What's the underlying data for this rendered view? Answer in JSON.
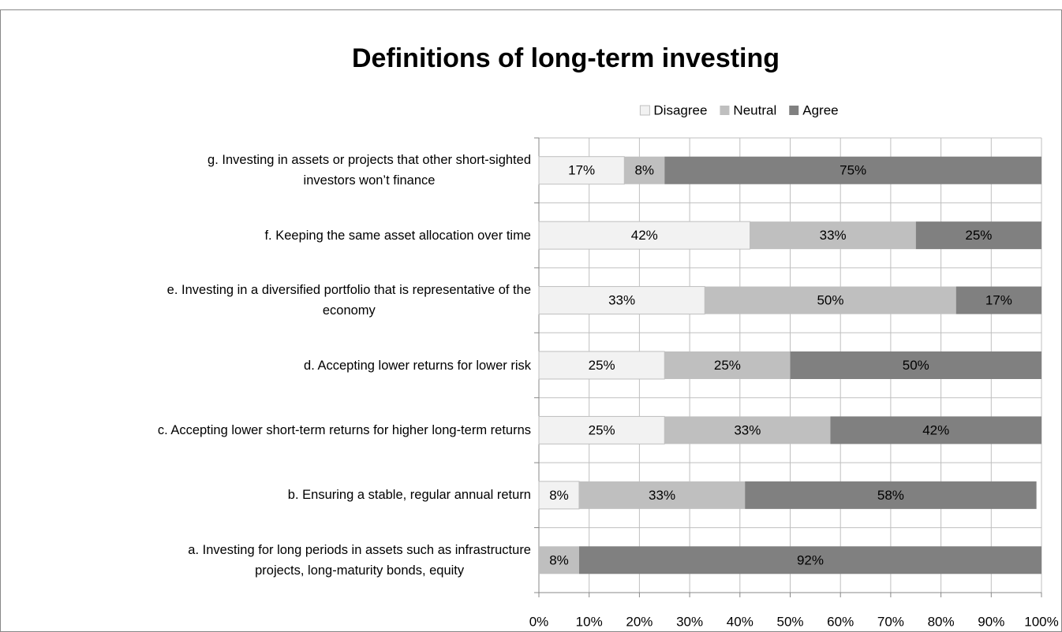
{
  "chart_data": {
    "type": "stacked_barh",
    "title": "Definitions of long-term investing",
    "categories": [
      "a. Investing for long periods in assets such as infrastructure\nprojects, long-maturity bonds, equity",
      "b. Ensuring a stable, regular annual return",
      "c. Accepting lower short-term returns for higher long-term returns",
      "d. Accepting lower returns for lower risk",
      "e. Investing in a diversified portfolio that is representative of the\neconomy",
      "f.  Keeping the same asset allocation over time",
      "g. Investing in assets or projects that other short-sighted\ninvestors won’t finance"
    ],
    "series": [
      {
        "name": "Disagree",
        "color": "#f2f2f2",
        "values": [
          0,
          8,
          25,
          25,
          33,
          42,
          17
        ],
        "value_labels": [
          null,
          "8%",
          "25%",
          "25%",
          "33%",
          "42%",
          "17%"
        ]
      },
      {
        "name": "Neutral",
        "color": "#bfbfbf",
        "values": [
          8,
          33,
          33,
          25,
          50,
          33,
          8
        ],
        "value_labels": [
          "8%",
          "33%",
          "33%",
          "25%",
          "50%",
          "33%",
          "8%"
        ]
      },
      {
        "name": "Agree",
        "color": "#808080",
        "values": [
          92,
          58,
          42,
          50,
          17,
          25,
          75
        ],
        "value_labels": [
          "92%",
          "58%",
          "42%",
          "50%",
          "17%",
          "25%",
          "75%"
        ]
      }
    ],
    "xlim": [
      0,
      100
    ],
    "xticks": [
      {
        "value": 0,
        "label": "0%"
      },
      {
        "value": 10,
        "label": "10%"
      },
      {
        "value": 20,
        "label": "20%"
      },
      {
        "value": 30,
        "label": "30%"
      },
      {
        "value": 40,
        "label": "40%"
      },
      {
        "value": 50,
        "label": "50%"
      },
      {
        "value": 60,
        "label": "60%"
      },
      {
        "value": 70,
        "label": "70%"
      },
      {
        "value": 80,
        "label": "80%"
      },
      {
        "value": 90,
        "label": "90%"
      },
      {
        "value": 100,
        "label": "100%"
      }
    ],
    "grid": true,
    "legend": "top"
  }
}
